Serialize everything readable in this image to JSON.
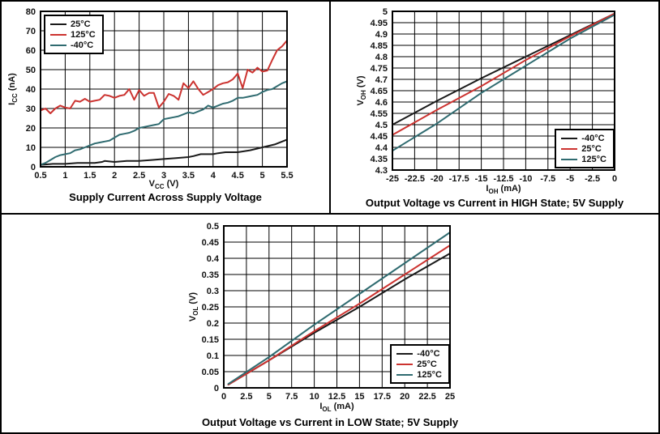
{
  "colors": {
    "series_black": "#1a1a1a",
    "series_red": "#cc3330",
    "series_teal": "#2f6b70",
    "grid": "#000000",
    "frame": "#000000",
    "background": "#ffffff"
  },
  "chart_data": [
    {
      "type": "line",
      "title": "Supply Current Across Supply Voltage",
      "xlabel": "VCC (V)",
      "xlabel_parts": {
        "pre": "V",
        "sub": "CC",
        "post": " (V)"
      },
      "ylabel": "ICC (nA)",
      "ylabel_parts": {
        "pre": "I",
        "sub": "CC",
        "post": " (nA)"
      },
      "xlim": [
        0.5,
        5.5
      ],
      "ylim": [
        0,
        80
      ],
      "x_tick_labels": [
        "0.5",
        "1",
        "1.5",
        "2",
        "2.5",
        "3",
        "3.5",
        "4",
        "4.5",
        "5",
        "5.5"
      ],
      "y_tick_labels": [
        "0",
        "10",
        "20",
        "30",
        "40",
        "50",
        "60",
        "70",
        "80"
      ],
      "grid": true,
      "legend_position": "top-left",
      "legend": [
        {
          "label": "25°C",
          "color": "#1a1a1a"
        },
        {
          "label": "125°C",
          "color": "#cc3330"
        },
        {
          "label": "-40°C",
          "color": "#2f6b70"
        }
      ],
      "series": [
        {
          "name": "25C",
          "color": "#1a1a1a",
          "x": [
            0.5,
            0.75,
            1,
            1.25,
            1.5,
            1.6,
            1.75,
            1.8,
            2,
            2.25,
            2.5,
            2.75,
            3,
            3.25,
            3.5,
            3.6,
            3.75,
            4,
            4.1,
            4.25,
            4.5,
            4.75,
            5,
            5.25,
            5.5
          ],
          "y": [
            1,
            1.5,
            1.5,
            2,
            2,
            2,
            2.5,
            3,
            2.5,
            3,
            3,
            3.5,
            4,
            4.5,
            5,
            5.5,
            6.5,
            6.5,
            7,
            7.5,
            7.5,
            8.5,
            10,
            11.5,
            14
          ]
        },
        {
          "name": "125C",
          "color": "#cc3330",
          "x": [
            0.5,
            0.6,
            0.7,
            0.8,
            0.9,
            1,
            1.1,
            1.2,
            1.3,
            1.4,
            1.5,
            1.6,
            1.7,
            1.8,
            1.9,
            2,
            2.1,
            2.2,
            2.3,
            2.4,
            2.5,
            2.6,
            2.7,
            2.8,
            2.9,
            3,
            3.1,
            3.2,
            3.3,
            3.4,
            3.5,
            3.6,
            3.7,
            3.8,
            3.9,
            4,
            4.1,
            4.2,
            4.3,
            4.4,
            4.5,
            4.6,
            4.7,
            4.8,
            4.9,
            5,
            5.1,
            5.2,
            5.3,
            5.4,
            5.5
          ],
          "y": [
            29,
            30,
            27.5,
            30,
            31.5,
            30.5,
            30,
            34,
            33.5,
            35,
            33.5,
            34,
            34.5,
            37,
            36.5,
            35.5,
            36.5,
            37,
            40,
            34.5,
            39.5,
            36.5,
            38,
            38,
            30.5,
            33.5,
            37.5,
            36.5,
            34.5,
            43,
            40.5,
            44,
            40,
            37,
            38.5,
            40,
            42,
            43,
            43.5,
            45,
            48,
            40.5,
            50,
            48.5,
            51,
            49,
            49.5,
            55,
            60,
            62,
            65
          ]
        },
        {
          "name": "-40C",
          "color": "#2f6b70",
          "x": [
            0.5,
            0.6,
            0.7,
            0.8,
            0.9,
            1,
            1.1,
            1.2,
            1.3,
            1.4,
            1.5,
            1.6,
            1.7,
            1.8,
            1.9,
            2,
            2.1,
            2.2,
            2.3,
            2.4,
            2.5,
            2.6,
            2.7,
            2.8,
            2.9,
            3,
            3.1,
            3.2,
            3.3,
            3.4,
            3.5,
            3.6,
            3.7,
            3.8,
            3.9,
            4,
            4.1,
            4.2,
            4.3,
            4.4,
            4.5,
            4.6,
            4.7,
            4.8,
            4.9,
            5,
            5.1,
            5.2,
            5.3,
            5.4,
            5.5
          ],
          "y": [
            1,
            2,
            3.5,
            5,
            6,
            6.5,
            7,
            8.5,
            9,
            10,
            11,
            12,
            12.5,
            13,
            13.5,
            15,
            16.5,
            17,
            17.5,
            18.5,
            20,
            20.5,
            21,
            21.5,
            22,
            24.5,
            25,
            25.5,
            26,
            27,
            28,
            27.5,
            28.5,
            29.5,
            31.5,
            30.5,
            31.5,
            32.5,
            33,
            34,
            35.5,
            35.5,
            36,
            36.5,
            37,
            38.5,
            39.5,
            40,
            41.5,
            43,
            44
          ]
        }
      ]
    },
    {
      "type": "line",
      "title": "Output Voltage vs Current in HIGH State; 5V Supply",
      "xlabel": "IOH (mA)",
      "xlabel_parts": {
        "pre": "I",
        "sub": "OH",
        "post": " (mA)"
      },
      "ylabel": "VOH (V)",
      "ylabel_parts": {
        "pre": "V",
        "sub": "OH",
        "post": " (V)"
      },
      "xlim": [
        -25,
        0
      ],
      "ylim": [
        4.3,
        5
      ],
      "x_tick_labels": [
        "-25",
        "-22.5",
        "-20",
        "-17.5",
        "-15",
        "-12.5",
        "-10",
        "-7.5",
        "-5",
        "-2.5",
        "0"
      ],
      "y_tick_labels": [
        "4.3",
        "4.35",
        "4.4",
        "4.45",
        "4.5",
        "4.55",
        "4.6",
        "4.65",
        "4.7",
        "4.75",
        "4.8",
        "4.85",
        "4.9",
        "4.95",
        "5"
      ],
      "grid": true,
      "legend_position": "bottom-right",
      "legend": [
        {
          "label": "-40°C",
          "color": "#1a1a1a"
        },
        {
          "label": "25°C",
          "color": "#cc3330"
        },
        {
          "label": "125°C",
          "color": "#2f6b70"
        }
      ],
      "series": [
        {
          "name": "-40C",
          "color": "#1a1a1a",
          "x": [
            -25,
            -20,
            -15,
            -10,
            -5,
            0
          ],
          "y": [
            4.5,
            4.605,
            4.705,
            4.8,
            4.895,
            4.99
          ]
        },
        {
          "name": "25C",
          "color": "#cc3330",
          "x": [
            -25,
            -20,
            -15,
            -10,
            -5,
            0
          ],
          "y": [
            4.455,
            4.565,
            4.67,
            4.785,
            4.89,
            4.99
          ]
        },
        {
          "name": "125C",
          "color": "#2f6b70",
          "x": [
            -25,
            -20,
            -15,
            -10,
            -5,
            0
          ],
          "y": [
            4.385,
            4.505,
            4.64,
            4.76,
            4.88,
            4.985
          ]
        }
      ]
    },
    {
      "type": "line",
      "title": "Output Voltage vs Current in LOW State; 5V Supply",
      "xlabel": "IOL (mA)",
      "xlabel_parts": {
        "pre": "I",
        "sub": "OL",
        "post": " (mA)"
      },
      "ylabel": "VOL (V)",
      "ylabel_parts": {
        "pre": "V",
        "sub": "OL",
        "post": " (V)"
      },
      "xlim": [
        0,
        25
      ],
      "ylim": [
        0,
        0.5
      ],
      "x_tick_labels": [
        "0",
        "2.5",
        "5",
        "7.5",
        "10",
        "12.5",
        "15",
        "17.5",
        "20",
        "22.5",
        "25"
      ],
      "y_tick_labels": [
        "0",
        "0.05",
        "0.1",
        "0.15",
        "0.2",
        "0.25",
        "0.3",
        "0.35",
        "0.4",
        "0.45",
        "0.5"
      ],
      "grid": true,
      "legend_position": "bottom-right",
      "legend": [
        {
          "label": "-40°C",
          "color": "#1a1a1a"
        },
        {
          "label": "25°C",
          "color": "#cc3330"
        },
        {
          "label": "125°C",
          "color": "#2f6b70"
        }
      ],
      "series": [
        {
          "name": "-40C",
          "color": "#1a1a1a",
          "x": [
            0.5,
            5,
            10,
            15,
            20,
            25
          ],
          "y": [
            0.01,
            0.085,
            0.17,
            0.25,
            0.335,
            0.415
          ]
        },
        {
          "name": "25C",
          "color": "#cc3330",
          "x": [
            0.5,
            5,
            10,
            15,
            20,
            25
          ],
          "y": [
            0.01,
            0.085,
            0.175,
            0.26,
            0.35,
            0.44
          ]
        },
        {
          "name": "125C",
          "color": "#2f6b70",
          "x": [
            0.5,
            5,
            10,
            15,
            20,
            25
          ],
          "y": [
            0.012,
            0.095,
            0.195,
            0.29,
            0.385,
            0.48
          ]
        }
      ]
    }
  ]
}
